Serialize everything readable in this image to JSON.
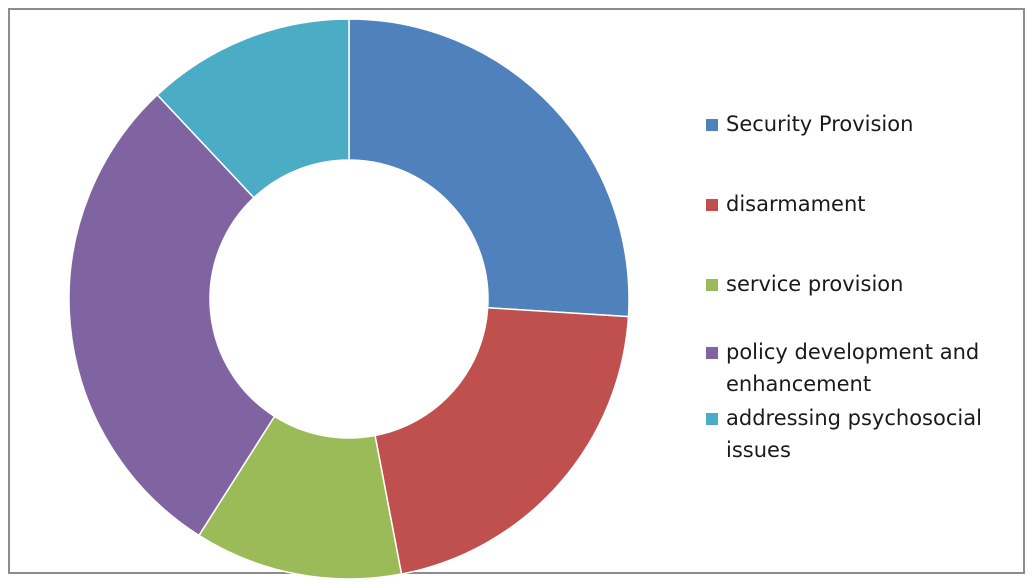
{
  "chart_data": {
    "type": "pie",
    "donut": true,
    "title": "",
    "legend_position": "right",
    "categories": [
      "Security Provision",
      "disarmament",
      "service provision",
      "policy development and enhancement",
      "addressing psychosocial issues"
    ],
    "values": [
      26,
      21,
      12,
      29,
      12
    ],
    "colors": [
      "#4f81bd",
      "#c0504d",
      "#9bbb59",
      "#8064a2",
      "#4bacc6"
    ]
  },
  "legend": {
    "items": [
      {
        "label": "Security Provision",
        "color": "#4f81bd"
      },
      {
        "label": "disarmament",
        "color": "#c0504d"
      },
      {
        "label": "service provision",
        "color": "#9bbb59"
      },
      {
        "label": "policy development and enhancement",
        "color": "#8064a2"
      },
      {
        "label": "addressing psychosocial issues",
        "color": "#4bacc6"
      }
    ]
  }
}
